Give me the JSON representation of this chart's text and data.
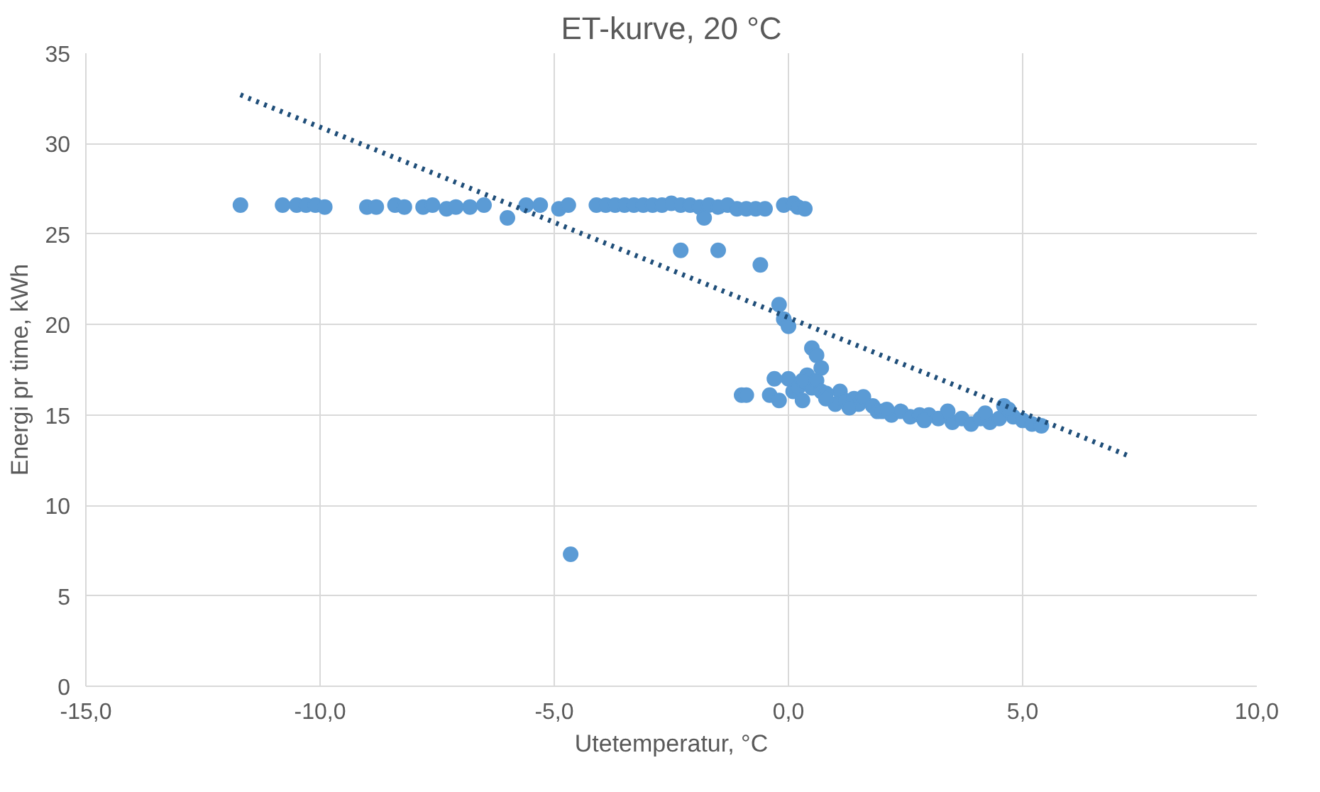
{
  "chart_data": {
    "type": "scatter",
    "title": "ET-kurve, 20 °C",
    "xlabel": "Utetemperatur, °C",
    "ylabel": "Energi pr time, kWh",
    "xlim": [
      -15,
      10
    ],
    "ylim": [
      0,
      35
    ],
    "xticks": [
      {
        "value": -15,
        "label": "-15,0"
      },
      {
        "value": -10,
        "label": "-10,0"
      },
      {
        "value": -5,
        "label": "-5,0"
      },
      {
        "value": 0,
        "label": "0,0"
      },
      {
        "value": 5,
        "label": "5,0"
      },
      {
        "value": 10,
        "label": "10,0"
      }
    ],
    "yticks": [
      0,
      5,
      10,
      15,
      20,
      25,
      30,
      35
    ],
    "grid": true,
    "series": [
      {
        "marker": "circle",
        "color": "#5b9bd5",
        "x": [
          -11.7,
          -10.8,
          -10.5,
          -10.3,
          -10.1,
          -9.9,
          -9.0,
          -8.8,
          -8.4,
          -8.2,
          -7.8,
          -7.6,
          -7.3,
          -7.1,
          -6.8,
          -6.5,
          -6.0,
          -5.6,
          -5.3,
          -4.9,
          -4.7,
          -4.1,
          -3.9,
          -3.7,
          -3.5,
          -3.3,
          -3.1,
          -2.9,
          -2.7,
          -2.5,
          -2.3,
          -2.1,
          -1.9,
          -1.8,
          -1.7,
          -1.5,
          -1.3,
          -1.1,
          -0.9,
          -0.7,
          -0.5,
          -0.1,
          0.1,
          0.2,
          0.35,
          -4.65,
          -2.3,
          -1.5,
          -0.6,
          -0.2,
          -0.1,
          0.0,
          0.5,
          0.6,
          0.7,
          -1.0,
          -0.9,
          -0.4,
          -0.3,
          -0.2,
          0.0,
          0.1,
          0.2,
          0.3,
          0.4,
          0.5,
          0.6,
          0.7,
          0.8,
          1.0,
          1.1,
          1.2,
          1.4,
          1.5,
          1.6,
          1.8,
          1.9,
          2.0,
          2.2,
          2.4,
          2.6,
          2.8,
          3.0,
          3.2,
          3.5,
          3.7,
          3.9,
          4.1,
          4.3,
          4.5,
          4.6,
          4.8,
          5.0,
          5.2,
          5.4,
          0.3,
          0.8,
          1.3,
          2.1,
          2.9,
          3.4,
          4.2,
          4.7
        ],
        "values": [
          26.6,
          26.6,
          26.6,
          26.6,
          26.6,
          26.5,
          26.5,
          26.5,
          26.6,
          26.5,
          26.5,
          26.6,
          26.4,
          26.5,
          26.5,
          26.6,
          25.9,
          26.6,
          26.6,
          26.4,
          26.6,
          26.6,
          26.6,
          26.6,
          26.6,
          26.6,
          26.6,
          26.6,
          26.6,
          26.7,
          26.6,
          26.6,
          26.5,
          25.9,
          26.6,
          26.5,
          26.6,
          26.4,
          26.4,
          26.4,
          26.4,
          26.6,
          26.7,
          26.5,
          26.4,
          7.3,
          24.1,
          24.1,
          23.3,
          21.1,
          20.3,
          19.9,
          18.7,
          18.3,
          17.6,
          16.1,
          16.1,
          16.1,
          17.0,
          15.8,
          17.0,
          16.3,
          16.5,
          15.8,
          17.2,
          16.5,
          16.9,
          16.3,
          16.2,
          15.6,
          16.3,
          15.8,
          15.9,
          15.6,
          16.0,
          15.5,
          15.2,
          15.2,
          15.0,
          15.2,
          14.9,
          15.0,
          15.0,
          14.8,
          14.6,
          14.8,
          14.5,
          14.8,
          14.6,
          14.8,
          15.5,
          14.9,
          14.7,
          14.5,
          14.4,
          16.9,
          15.9,
          15.4,
          15.3,
          14.7,
          15.2,
          15.1,
          15.3
        ]
      },
      {
        "type": "line",
        "line_style": "dotted",
        "color": "#1f4e79",
        "x": [
          -11.7,
          7.3
        ],
        "values": [
          32.7,
          12.7
        ]
      }
    ]
  }
}
